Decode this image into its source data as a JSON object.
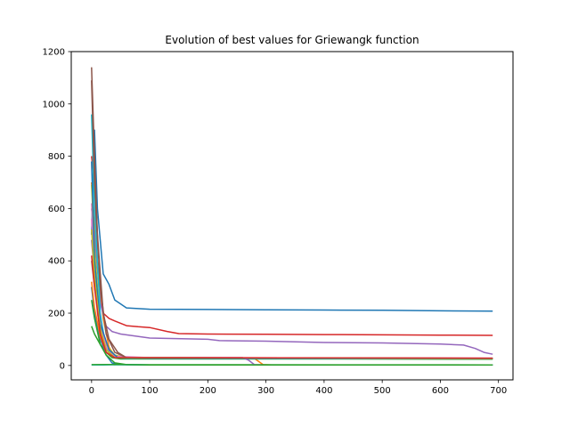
{
  "chart_data": {
    "type": "line",
    "title": "Evolution of best values for Griewangk function",
    "xlabel": "",
    "ylabel": "",
    "xlim": [
      -35,
      725
    ],
    "ylim": [
      -55,
      1200
    ],
    "xticks": [
      0,
      100,
      200,
      300,
      400,
      500,
      600,
      700
    ],
    "yticks": [
      0,
      200,
      400,
      600,
      800,
      1000,
      1200
    ],
    "grid": false,
    "legend": "none",
    "series": [
      {
        "color": "#1f77b4",
        "points": [
          [
            0,
            500
          ],
          [
            5,
            900
          ],
          [
            10,
            600
          ],
          [
            20,
            350
          ],
          [
            30,
            310
          ],
          [
            40,
            250
          ],
          [
            60,
            220
          ],
          [
            100,
            215
          ],
          [
            200,
            214
          ],
          [
            300,
            213
          ],
          [
            400,
            212
          ],
          [
            500,
            211
          ],
          [
            600,
            209
          ],
          [
            690,
            208
          ]
        ]
      },
      {
        "color": "#ff7f0e",
        "points": [
          [
            0,
            700
          ],
          [
            5,
            520
          ],
          [
            10,
            380
          ],
          [
            20,
            180
          ],
          [
            30,
            70
          ],
          [
            40,
            35
          ],
          [
            60,
            30
          ],
          [
            100,
            28
          ],
          [
            200,
            28
          ],
          [
            280,
            27
          ],
          [
            295,
            3
          ],
          [
            310,
            2
          ],
          [
            400,
            2
          ],
          [
            690,
            2
          ]
        ]
      },
      {
        "color": "#2ca02c",
        "points": [
          [
            0,
            150
          ],
          [
            5,
            120
          ],
          [
            15,
            80
          ],
          [
            25,
            50
          ],
          [
            35,
            30
          ],
          [
            50,
            25
          ],
          [
            100,
            25
          ],
          [
            400,
            25
          ],
          [
            690,
            24
          ]
        ]
      },
      {
        "color": "#d62728",
        "points": [
          [
            0,
            800
          ],
          [
            5,
            700
          ],
          [
            10,
            400
          ],
          [
            20,
            200
          ],
          [
            30,
            180
          ],
          [
            40,
            170
          ],
          [
            60,
            152
          ],
          [
            80,
            148
          ],
          [
            100,
            145
          ],
          [
            130,
            130
          ],
          [
            150,
            122
          ],
          [
            200,
            120
          ],
          [
            300,
            119
          ],
          [
            400,
            118
          ],
          [
            500,
            117
          ],
          [
            600,
            116
          ],
          [
            690,
            115
          ]
        ]
      },
      {
        "color": "#9467bd",
        "points": [
          [
            0,
            600
          ],
          [
            5,
            500
          ],
          [
            15,
            240
          ],
          [
            25,
            150
          ],
          [
            35,
            130
          ],
          [
            50,
            120
          ],
          [
            100,
            105
          ],
          [
            200,
            100
          ],
          [
            220,
            95
          ],
          [
            300,
            93
          ],
          [
            400,
            88
          ],
          [
            500,
            86
          ],
          [
            600,
            82
          ],
          [
            640,
            78
          ],
          [
            660,
            65
          ],
          [
            675,
            50
          ],
          [
            690,
            43
          ]
        ]
      },
      {
        "color": "#8c564b",
        "points": [
          [
            0,
            1140
          ],
          [
            5,
            800
          ],
          [
            10,
            500
          ],
          [
            20,
            200
          ],
          [
            30,
            100
          ],
          [
            45,
            50
          ],
          [
            60,
            30
          ],
          [
            100,
            28
          ],
          [
            400,
            28
          ],
          [
            690,
            27
          ]
        ]
      },
      {
        "color": "#e377c2",
        "points": [
          [
            0,
            620
          ],
          [
            5,
            400
          ],
          [
            10,
            200
          ],
          [
            20,
            80
          ],
          [
            35,
            40
          ],
          [
            60,
            30
          ],
          [
            100,
            28
          ],
          [
            690,
            27
          ]
        ]
      },
      {
        "color": "#7f7f7f",
        "points": [
          [
            0,
            400
          ],
          [
            5,
            300
          ],
          [
            15,
            150
          ],
          [
            25,
            60
          ],
          [
            40,
            30
          ],
          [
            60,
            28
          ],
          [
            690,
            26
          ]
        ]
      },
      {
        "color": "#bcbd22",
        "points": [
          [
            0,
            690
          ],
          [
            5,
            450
          ],
          [
            15,
            160
          ],
          [
            25,
            80
          ],
          [
            40,
            40
          ],
          [
            60,
            30
          ],
          [
            690,
            26
          ]
        ]
      },
      {
        "color": "#17becf",
        "points": [
          [
            0,
            960
          ],
          [
            5,
            600
          ],
          [
            15,
            200
          ],
          [
            25,
            60
          ],
          [
            40,
            30
          ],
          [
            60,
            28
          ],
          [
            100,
            27
          ],
          [
            690,
            26
          ]
        ]
      },
      {
        "color": "#1f77b4",
        "points": [
          [
            0,
            300
          ],
          [
            5,
            200
          ],
          [
            15,
            100
          ],
          [
            25,
            40
          ],
          [
            35,
            10
          ],
          [
            45,
            3
          ],
          [
            100,
            2
          ],
          [
            690,
            2
          ]
        ]
      },
      {
        "color": "#ff7f0e",
        "points": [
          [
            0,
            320
          ],
          [
            5,
            220
          ],
          [
            15,
            110
          ],
          [
            25,
            50
          ],
          [
            40,
            30
          ],
          [
            100,
            28
          ],
          [
            690,
            27
          ]
        ]
      },
      {
        "color": "#2ca02c",
        "points": [
          [
            0,
            250
          ],
          [
            5,
            180
          ],
          [
            15,
            80
          ],
          [
            25,
            40
          ],
          [
            40,
            10
          ],
          [
            60,
            3
          ],
          [
            690,
            2
          ]
        ]
      },
      {
        "color": "#9467bd",
        "points": [
          [
            0,
            480
          ],
          [
            5,
            350
          ],
          [
            15,
            150
          ],
          [
            25,
            70
          ],
          [
            40,
            32
          ],
          [
            100,
            30
          ],
          [
            260,
            30
          ],
          [
            270,
            20
          ],
          [
            280,
            3
          ],
          [
            300,
            2
          ],
          [
            690,
            2
          ]
        ]
      },
      {
        "color": "#e377c2",
        "points": [
          [
            0,
            560
          ],
          [
            5,
            380
          ],
          [
            15,
            170
          ],
          [
            25,
            70
          ],
          [
            40,
            35
          ],
          [
            100,
            30
          ],
          [
            690,
            28
          ]
        ]
      },
      {
        "color": "#8c564b",
        "points": [
          [
            0,
            1090
          ],
          [
            5,
            700
          ],
          [
            15,
            300
          ],
          [
            25,
            120
          ],
          [
            40,
            50
          ],
          [
            60,
            30
          ],
          [
            690,
            27
          ]
        ]
      },
      {
        "color": "#17becf",
        "points": [
          [
            0,
            2
          ],
          [
            20,
            2
          ],
          [
            60,
            3
          ],
          [
            100,
            2
          ],
          [
            690,
            2
          ]
        ]
      },
      {
        "color": "#2ca02c",
        "points": [
          [
            0,
            3
          ],
          [
            50,
            4
          ],
          [
            100,
            2
          ],
          [
            300,
            2
          ],
          [
            690,
            2
          ]
        ]
      },
      {
        "color": "#1f77b4",
        "points": [
          [
            0,
            780
          ],
          [
            5,
            400
          ],
          [
            15,
            160
          ],
          [
            30,
            60
          ],
          [
            45,
            30
          ],
          [
            100,
            28
          ],
          [
            690,
            27
          ]
        ]
      },
      {
        "color": "#bcbd22",
        "points": [
          [
            0,
            520
          ],
          [
            5,
            340
          ],
          [
            15,
            140
          ],
          [
            25,
            60
          ],
          [
            40,
            30
          ],
          [
            690,
            27
          ]
        ]
      },
      {
        "color": "#d62728",
        "points": [
          [
            0,
            420
          ],
          [
            5,
            300
          ],
          [
            15,
            120
          ],
          [
            25,
            50
          ],
          [
            40,
            30
          ],
          [
            690,
            28
          ]
        ]
      }
    ]
  }
}
